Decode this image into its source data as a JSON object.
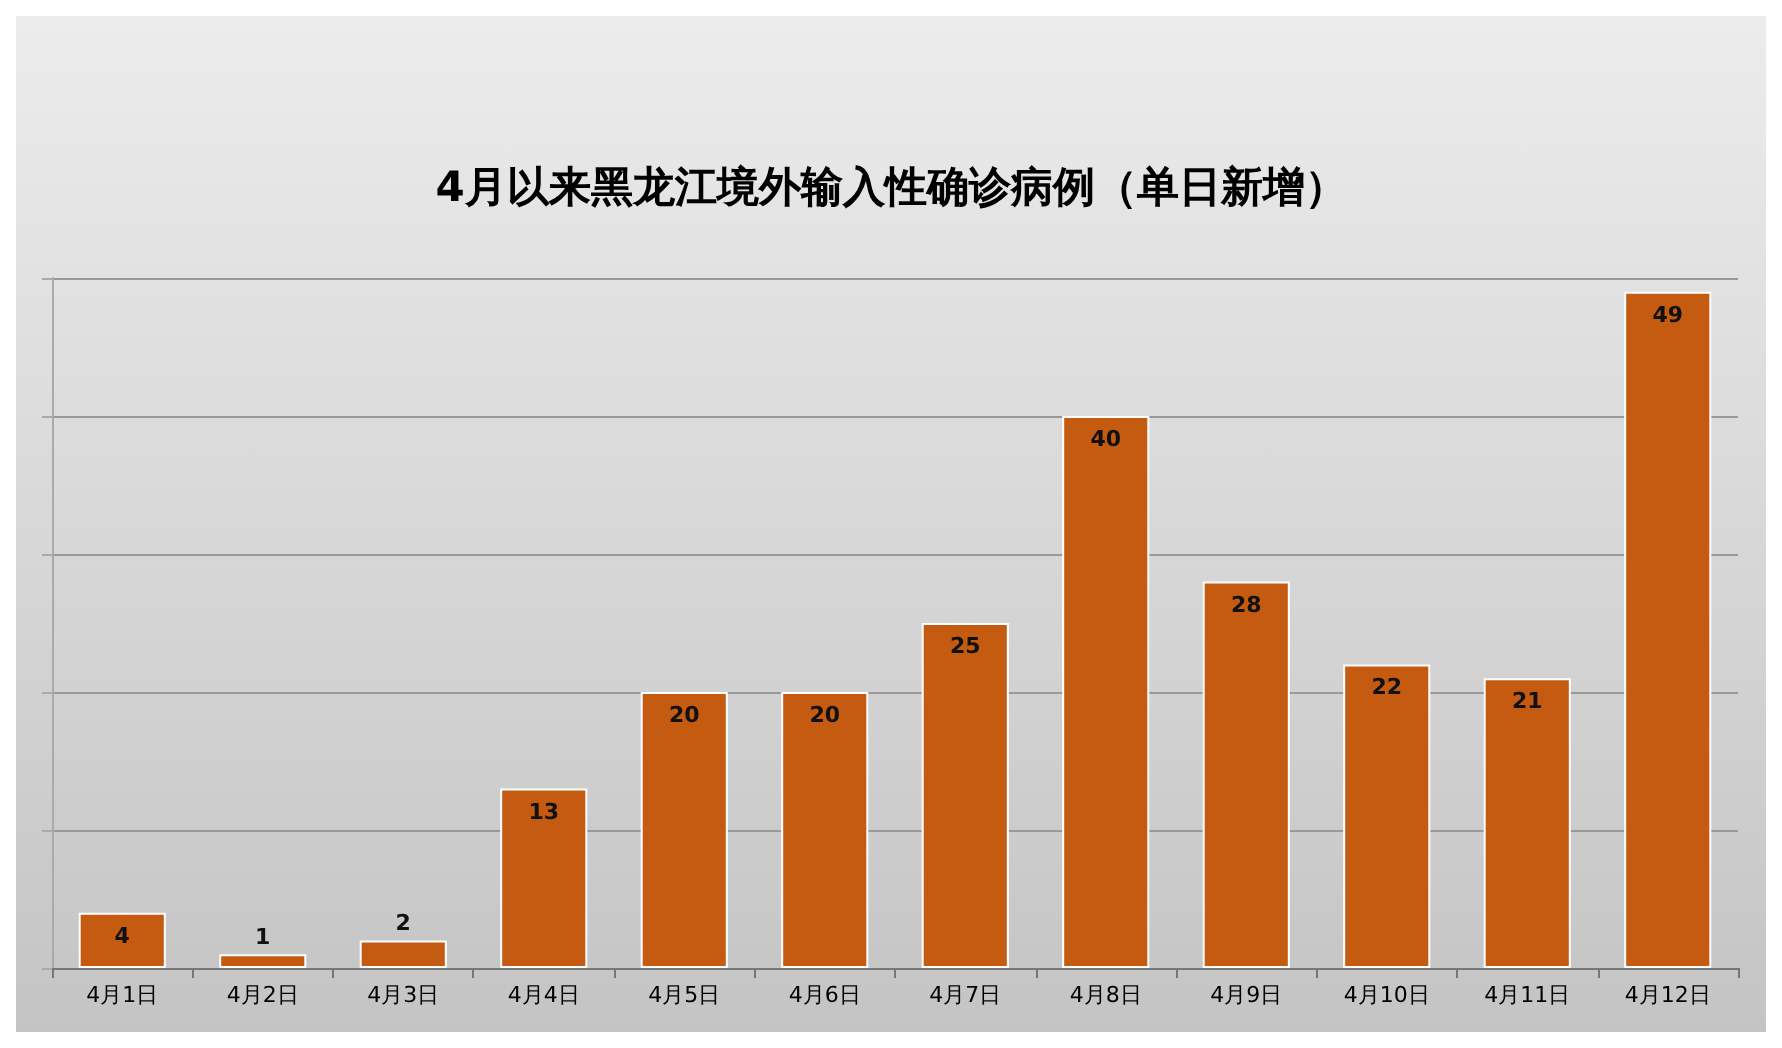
{
  "chart_data": {
    "type": "bar",
    "title": "4月以来黑龙江境外输入性确诊病例（单日新增）",
    "categories": [
      "4月1日",
      "4月2日",
      "4月3日",
      "4月4日",
      "4月5日",
      "4月6日",
      "4月7日",
      "4月8日",
      "4月9日",
      "4月10日",
      "4月11日",
      "4月12日"
    ],
    "values": [
      4,
      1,
      2,
      13,
      20,
      20,
      25,
      40,
      28,
      22,
      21,
      49
    ],
    "color": "#c55a11",
    "ylim": [
      0,
      50
    ],
    "yticks": [
      {
        "value": 0,
        "label": null
      },
      {
        "value": 10,
        "label": null
      },
      {
        "value": 20,
        "label": null
      },
      {
        "value": 30,
        "label": null
      },
      {
        "value": 40,
        "label": null
      },
      {
        "value": 50,
        "label": null
      }
    ],
    "tick_labels": "x",
    "grid": "y",
    "data_labels": true
  }
}
